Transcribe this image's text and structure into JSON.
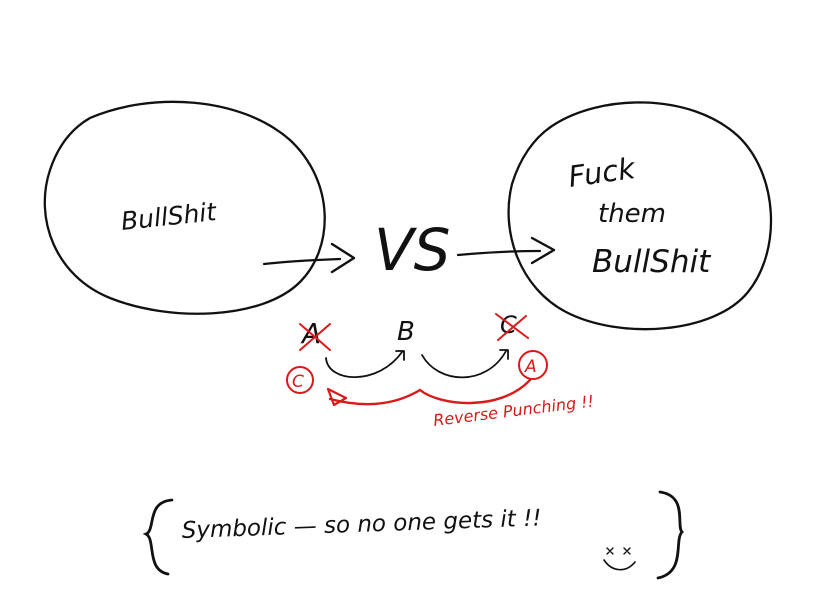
{
  "left_bubble": {
    "label": "BullShit"
  },
  "middle": {
    "vs_label": "VS"
  },
  "right_bubble": {
    "line1": "Fuck",
    "line2": "them",
    "line3": "BullShit"
  },
  "cycle": {
    "node_a_top": "A",
    "node_b_top": "B",
    "node_c_top": "C",
    "node_c_circled": "C",
    "node_a_circled": "A",
    "annotation": "Reverse Punching !!"
  },
  "footer": {
    "caption": "Symbolic — so no one gets it !!"
  },
  "colors": {
    "ink": "#111111",
    "red": "#d91a1a"
  }
}
